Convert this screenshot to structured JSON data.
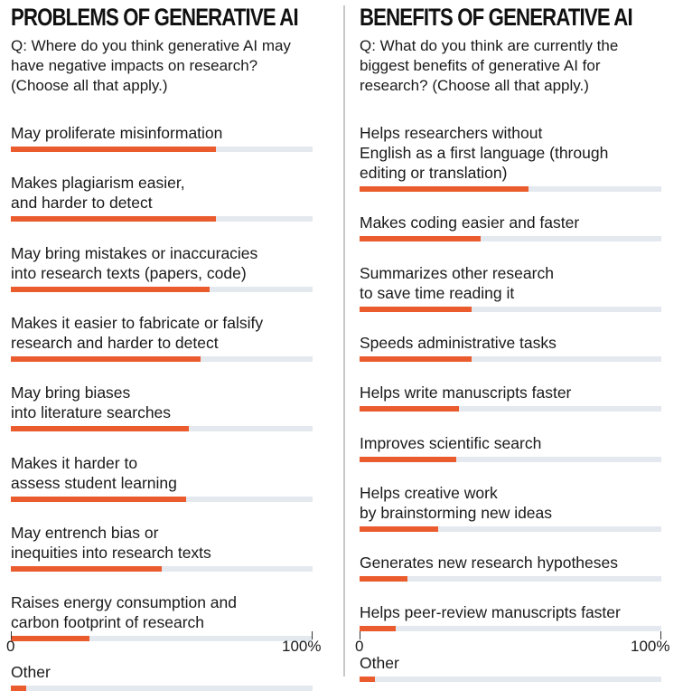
{
  "chart_data": [
    {
      "type": "bar",
      "title": "PROBLEMS OF GENERATIVE AI",
      "subtitle": "Q: Where do you think generative AI may have negative impacts on research? (Choose all that apply.)",
      "categories": [
        "May proliferate misinformation",
        "Makes plagiarism easier, and harder to detect",
        "May bring mistakes or inaccuracies into research texts (papers, code)",
        "Makes it easier to fabricate or falsify research and harder to detect",
        "May bring biases into literature searches",
        "Makes it harder to assess student learning",
        "May entrench bias or inequities into research texts",
        "Raises energy consumption and carbon footprint of research",
        "Other"
      ],
      "label_lines": [
        [
          "May proliferate misinformation"
        ],
        [
          "Makes plagiarism easier,",
          "and harder to detect"
        ],
        [
          "May bring mistakes or inaccuracies",
          "into research texts (papers, code)"
        ],
        [
          "Makes it easier to fabricate or falsify",
          "research and harder to detect"
        ],
        [
          "May bring biases",
          "into literature searches"
        ],
        [
          "Makes it harder to",
          "assess student learning"
        ],
        [
          "May entrench bias or",
          "inequities into research texts"
        ],
        [
          "Raises energy consumption and",
          "carbon footprint of research"
        ],
        [
          "Other"
        ]
      ],
      "values": [
        68,
        68,
        66,
        63,
        59,
        58,
        50,
        26,
        5
      ],
      "xlim": [
        0,
        100
      ],
      "x_tick_labels": [
        "0",
        "100%"
      ],
      "grid": false
    },
    {
      "type": "bar",
      "title": "BENEFITS OF GENERATIVE AI",
      "subtitle": "Q: What do you think are currently the biggest benefits of generative AI for research? (Choose all that apply.)",
      "categories": [
        "Helps researchers without English as a first language (through editing or translation)",
        "Makes coding easier and faster",
        "Summarizes other research to save time reading it",
        "Speeds administrative tasks",
        "Helps write manuscripts faster",
        "Improves scientific search",
        "Helps creative work by brainstorming new ideas",
        "Generates new research hypotheses",
        "Helps peer-review manuscripts faster",
        "Other"
      ],
      "label_lines": [
        [
          "Helps researchers without",
          "English as a first language (through",
          "editing or translation)"
        ],
        [
          "Makes coding easier and faster"
        ],
        [
          "Summarizes other research",
          "to save time reading it"
        ],
        [
          "Speeds administrative tasks"
        ],
        [
          "Helps write manuscripts faster"
        ],
        [
          "Improves scientific search"
        ],
        [
          "Helps creative work",
          "by brainstorming new ideas"
        ],
        [
          "Generates new research hypotheses"
        ],
        [
          "Helps peer-review manuscripts faster"
        ],
        [
          "Other"
        ]
      ],
      "values": [
        56,
        40,
        37,
        37,
        33,
        32,
        26,
        16,
        12,
        5
      ],
      "xlim": [
        0,
        100
      ],
      "x_tick_labels": [
        "0",
        "100%"
      ],
      "grid": false
    }
  ],
  "colors": {
    "bar": "#ea5b2d",
    "track": "#e4e9ef",
    "divider": "#c8c8c8"
  }
}
